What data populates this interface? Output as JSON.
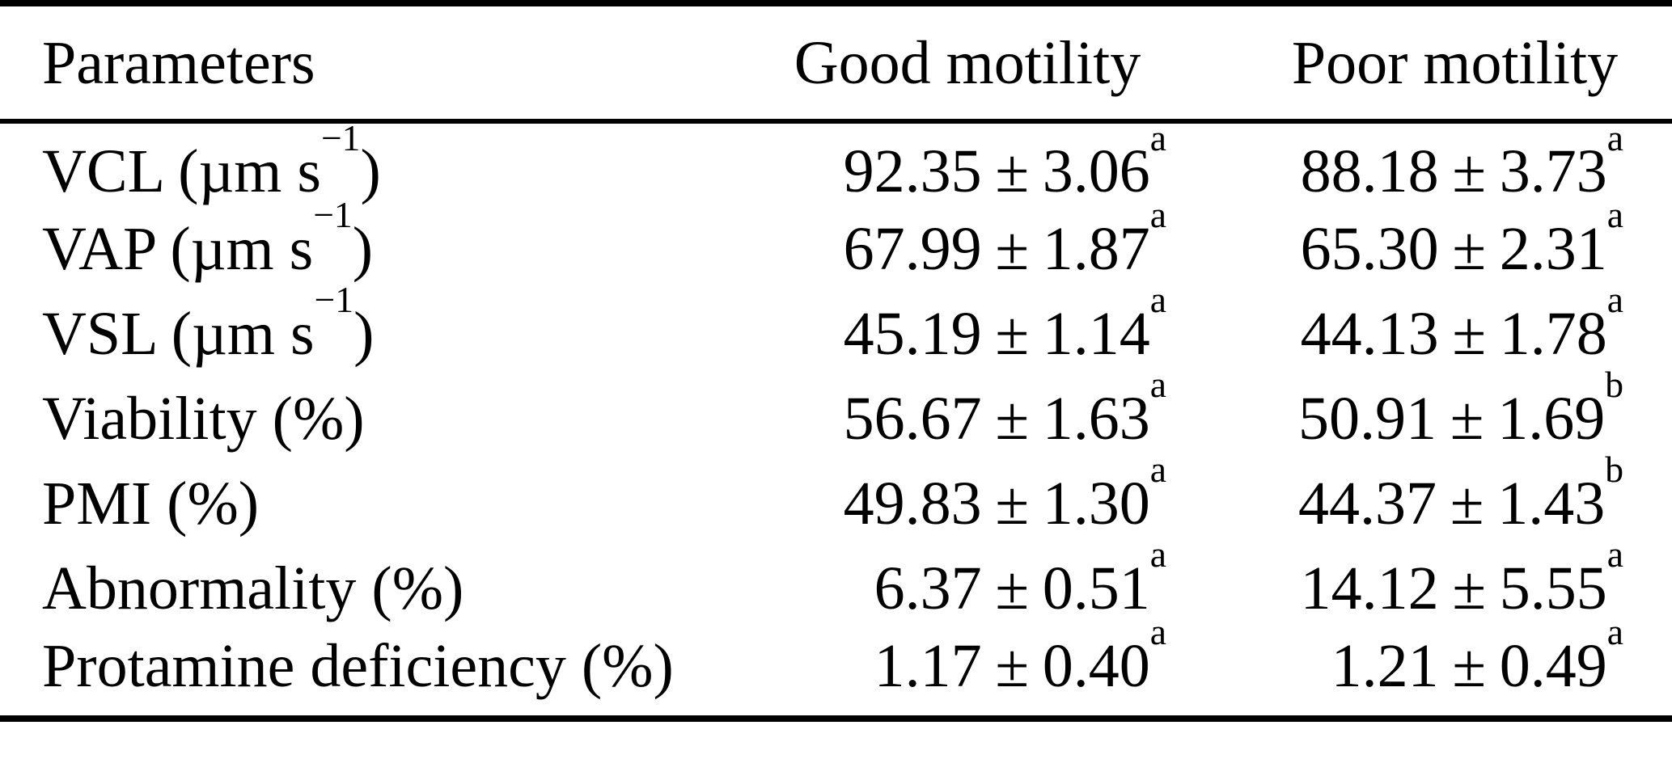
{
  "page": {
    "background": "#ffffff",
    "text_color": "#000000",
    "rule_color": "#000000"
  },
  "table": {
    "headers": {
      "parameters": "Parameters",
      "good": "Good motility",
      "poor": "Poor motility"
    },
    "rows": [
      {
        "param": {
          "text": "VCL (µm s",
          "sup": "−1",
          "tail": ")"
        },
        "good": {
          "mean": "92.35",
          "pm": "±",
          "err": "3.06",
          "sup": "a"
        },
        "poor": {
          "mean": "88.18",
          "pm": "±",
          "err": "3.73",
          "sup": "a"
        }
      },
      {
        "param": {
          "text": "VAP (µm s",
          "sup": "−1",
          "tail": ")"
        },
        "good": {
          "mean": "67.99",
          "pm": "±",
          "err": "1.87",
          "sup": "a"
        },
        "poor": {
          "mean": "65.30",
          "pm": "±",
          "err": "2.31",
          "sup": "a"
        }
      },
      {
        "param": {
          "text": "VSL (µm s",
          "sup": "−1",
          "tail": ")"
        },
        "good": {
          "mean": "45.19",
          "pm": "±",
          "err": "1.14",
          "sup": "a"
        },
        "poor": {
          "mean": "44.13",
          "pm": "±",
          "err": "1.78",
          "sup": "a"
        }
      },
      {
        "param": {
          "text": "Viability (%)",
          "sup": "",
          "tail": ""
        },
        "good": {
          "mean": "56.67",
          "pm": "±",
          "err": "1.63",
          "sup": "a"
        },
        "poor": {
          "mean": "50.91",
          "pm": "±",
          "err": "1.69",
          "sup": "b"
        }
      },
      {
        "param": {
          "text": "PMI (%)",
          "sup": "",
          "tail": ""
        },
        "good": {
          "mean": "49.83",
          "pm": "±",
          "err": "1.30",
          "sup": "a"
        },
        "poor": {
          "mean": "44.37",
          "pm": "±",
          "err": "1.43",
          "sup": "b"
        }
      },
      {
        "param": {
          "text": "Abnormality (%)",
          "sup": "",
          "tail": ""
        },
        "good": {
          "mean": "6.37",
          "pm": "±",
          "err": "0.51",
          "sup": "a"
        },
        "poor": {
          "mean": "14.12",
          "pm": "±",
          "err": "5.55",
          "sup": "a"
        }
      },
      {
        "param": {
          "text": "Protamine deficiency (%)",
          "sup": "",
          "tail": ""
        },
        "good": {
          "mean": "1.17",
          "pm": "±",
          "err": "0.40",
          "sup": "a"
        },
        "poor": {
          "mean": "1.21",
          "pm": "±",
          "err": "0.49",
          "sup": "a"
        }
      }
    ]
  },
  "chart_data": {
    "type": "table",
    "columns": [
      "Parameters",
      "Good motility",
      "Poor motility"
    ],
    "rows": [
      [
        "VCL (µm s^−1)",
        "92.35 ± 3.06^a",
        "88.18 ± 3.73^a"
      ],
      [
        "VAP (µm s^−1)",
        "67.99 ± 1.87^a",
        "65.30 ± 2.31^a"
      ],
      [
        "VSL (µm s^−1)",
        "45.19 ± 1.14^a",
        "44.13 ± 1.78^a"
      ],
      [
        "Viability (%)",
        "56.67 ± 1.63^a",
        "50.91 ± 1.69^b"
      ],
      [
        "PMI (%)",
        "49.83 ± 1.30^a",
        "44.37 ± 1.43^b"
      ],
      [
        "Abnormality (%)",
        "6.37 ± 0.51^a",
        "14.12 ± 5.55^a"
      ],
      [
        "Protamine deficiency (%)",
        "1.17 ± 0.40^a",
        "1.21 ± 0.49^a"
      ]
    ]
  }
}
